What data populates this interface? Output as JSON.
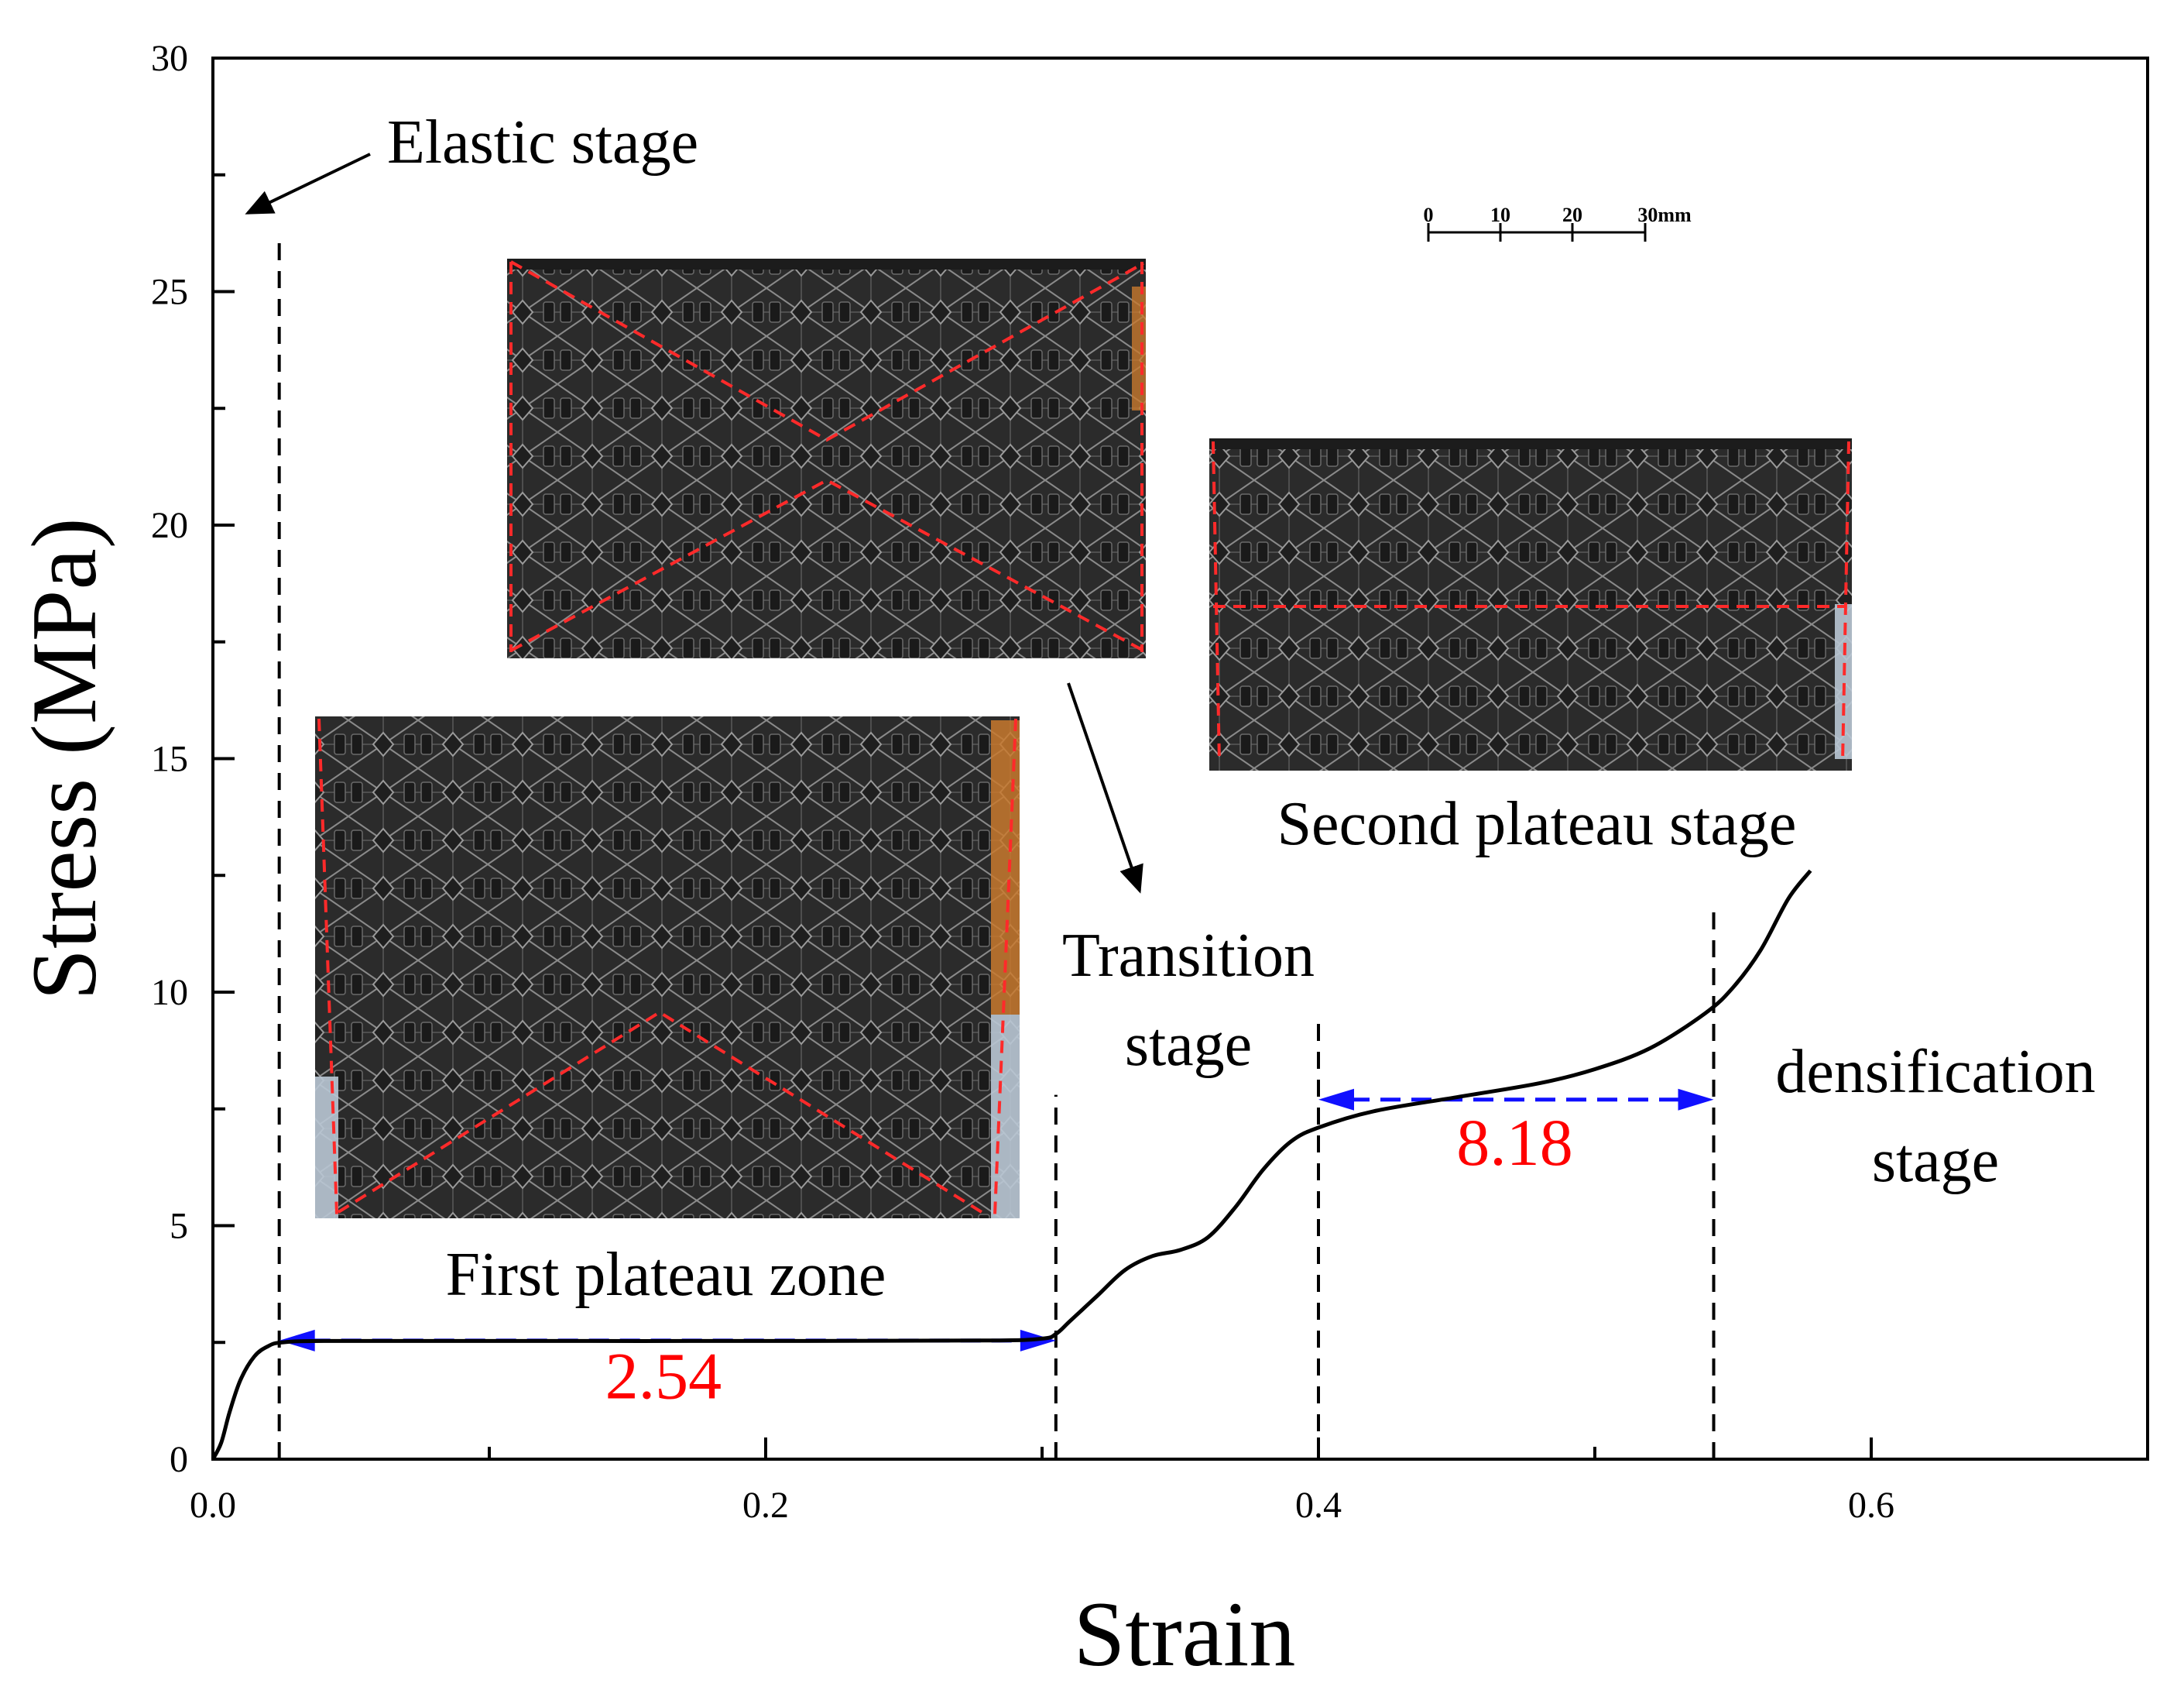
{
  "chart_data": {
    "type": "line",
    "xlabel": "Strain",
    "ylabel": "Stress (MPa)",
    "xlim": [
      0.0,
      0.7
    ],
    "ylim": [
      0,
      30
    ],
    "x_ticks": [
      {
        "value": 0.0,
        "label": "0.0"
      },
      {
        "value": 0.2,
        "label": "0.2"
      },
      {
        "value": 0.4,
        "label": "0.4"
      },
      {
        "value": 0.6,
        "label": "0.6"
      }
    ],
    "y_ticks": [
      {
        "value": 0,
        "label": "0"
      },
      {
        "value": 5,
        "label": "5"
      },
      {
        "value": 10,
        "label": "10"
      },
      {
        "value": 15,
        "label": "15"
      },
      {
        "value": 20,
        "label": "20"
      },
      {
        "value": 25,
        "label": "25"
      },
      {
        "value": 30,
        "label": "30"
      }
    ],
    "series": [
      {
        "name": "Stress-strain curve",
        "color": "#000000",
        "points": [
          [
            0.0,
            0.0
          ],
          [
            0.003,
            0.35
          ],
          [
            0.006,
            1.0
          ],
          [
            0.01,
            1.7
          ],
          [
            0.015,
            2.2
          ],
          [
            0.02,
            2.42
          ],
          [
            0.025,
            2.5
          ],
          [
            0.04,
            2.53
          ],
          [
            0.1,
            2.53
          ],
          [
            0.2,
            2.53
          ],
          [
            0.28,
            2.54
          ],
          [
            0.3,
            2.58
          ],
          [
            0.305,
            2.68
          ],
          [
            0.31,
            2.95
          ],
          [
            0.32,
            3.5
          ],
          [
            0.33,
            4.05
          ],
          [
            0.34,
            4.35
          ],
          [
            0.35,
            4.48
          ],
          [
            0.36,
            4.75
          ],
          [
            0.37,
            5.4
          ],
          [
            0.38,
            6.2
          ],
          [
            0.39,
            6.8
          ],
          [
            0.4,
            7.1
          ],
          [
            0.42,
            7.45
          ],
          [
            0.45,
            7.75
          ],
          [
            0.48,
            8.05
          ],
          [
            0.5,
            8.35
          ],
          [
            0.52,
            8.8
          ],
          [
            0.54,
            9.55
          ],
          [
            0.55,
            10.1
          ],
          [
            0.56,
            10.9
          ],
          [
            0.57,
            12.0
          ],
          [
            0.578,
            12.6
          ]
        ]
      }
    ],
    "stage_boundaries": [
      {
        "x": 0.024,
        "y_top": 26.2
      },
      {
        "x": 0.305,
        "y_top": 7.8
      },
      {
        "x": 0.4,
        "y_top": 9.5
      },
      {
        "x": 0.543,
        "y_top": 11.8
      }
    ],
    "range_arrows": [
      {
        "x_start": 0.024,
        "x_end": 0.305,
        "y": 2.54,
        "label": "2.54",
        "label_x": 0.163,
        "label_y": 1.3,
        "arrow_color": "#1010ff",
        "label_color": "#ff0000"
      },
      {
        "x_start": 0.4,
        "x_end": 0.543,
        "y": 7.7,
        "label": "8.18",
        "label_x": 0.471,
        "label_y": 6.3,
        "arrow_color": "#1010ff",
        "label_color": "#ff0000"
      }
    ],
    "annotations": {
      "elastic": "Elastic stage",
      "transition_line1": "Transition",
      "transition_line2": "stage",
      "densification_line1": "densification",
      "densification_line2": "stage",
      "first_plateau": "First plateau zone",
      "second_plateau": "Second plateau stage"
    },
    "scale_bar": {
      "labels": [
        "0",
        "10",
        "20",
        "30mm"
      ]
    }
  },
  "colors": {
    "axis": "#000000",
    "curve": "#000000",
    "arrow_blue": "#1010ff",
    "value_red": "#ff0000",
    "dashed_red": "#ff2a2a",
    "photo_bg": "#2c2c2c"
  }
}
